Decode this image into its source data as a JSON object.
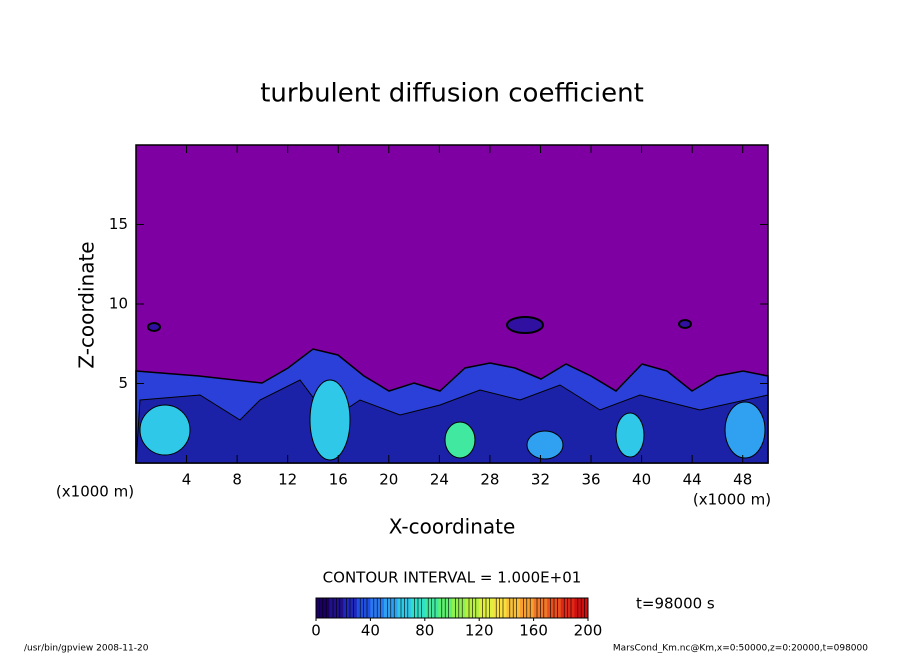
{
  "chart_data": {
    "type": "contour",
    "title": "turbulent diffusion coefficient",
    "x_label": "X-coordinate",
    "y_label": "Z-coordinate",
    "x_unit": "(x1000 m)",
    "y_unit": "(x1000 m)",
    "xlim": [
      0,
      50
    ],
    "ylim": [
      0,
      20
    ],
    "xticks": [
      4,
      8,
      12,
      16,
      20,
      24,
      28,
      32,
      36,
      40,
      44,
      48
    ],
    "yticks": [
      5,
      10,
      15
    ],
    "contour_interval": "CONTOUR INTERVAL = 1.000E+01",
    "time_label": "t=98000 s",
    "colorbar": {
      "range": [
        0,
        200
      ],
      "ticks": [
        0,
        40,
        80,
        120,
        160,
        200
      ],
      "colors": [
        "#1a0060",
        "#20108a",
        "#1f28b8",
        "#2050e0",
        "#2a78f0",
        "#30a0f0",
        "#30c8e8",
        "#30e0c8",
        "#40e8a0",
        "#60f070",
        "#90f050",
        "#b8f040",
        "#e0f040",
        "#f8e040",
        "#f8c038",
        "#f8a030",
        "#f07828",
        "#e85020",
        "#e02818",
        "#d01010"
      ]
    },
    "footer_left": "/usr/bin/gpview  2008-11-20",
    "footer_right": "MarsCond_Km.nc@Km,x=0:50000,z=0:20000,t=098000"
  }
}
